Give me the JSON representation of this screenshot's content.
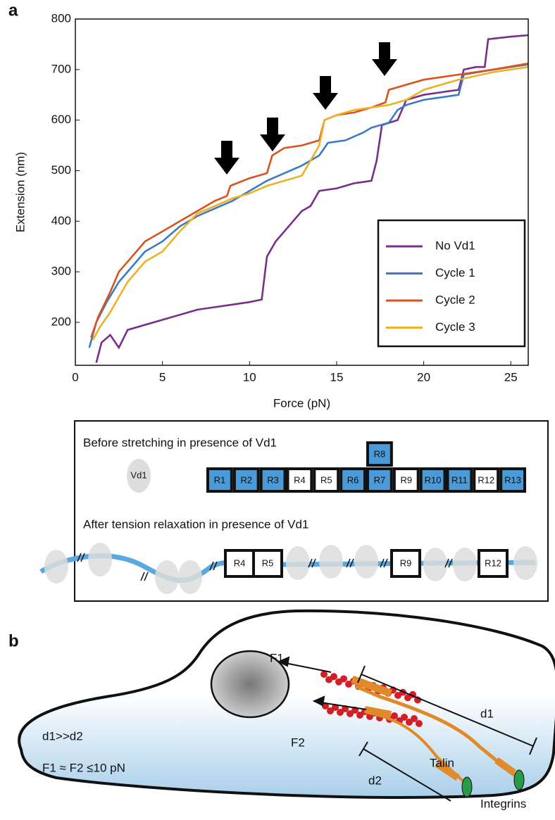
{
  "panel_labels": [
    "a",
    "b"
  ],
  "chart_data": {
    "type": "line",
    "xlabel": "Force (pN)",
    "ylabel": "Extension (nm)",
    "xlim": [
      0,
      26
    ],
    "ylim": [
      115,
      800
    ],
    "xticks": [
      0,
      5,
      10,
      15,
      20,
      25
    ],
    "yticks": [
      200,
      300,
      400,
      500,
      600,
      700,
      800
    ],
    "legend": "lower right",
    "series": [
      {
        "name": "No Vd1",
        "color": "#7b2d8e",
        "x": [
          1.2,
          1.5,
          2,
          2.5,
          3,
          4,
          5,
          6,
          7,
          8,
          9,
          10,
          10.7,
          11,
          11.5,
          12,
          12.5,
          13,
          13.5,
          14,
          15,
          16,
          17,
          17.3,
          17.6,
          18.5,
          19,
          20,
          21,
          22,
          22.3,
          23,
          23.5,
          23.7,
          25,
          26
        ],
        "values": [
          120,
          160,
          175,
          150,
          185,
          195,
          205,
          215,
          225,
          230,
          235,
          240,
          245,
          330,
          360,
          380,
          400,
          420,
          430,
          460,
          465,
          475,
          480,
          520,
          590,
          600,
          640,
          650,
          655,
          660,
          700,
          705,
          705,
          760,
          765,
          768
        ]
      },
      {
        "name": "Cycle 1",
        "color": "#3a7cc4",
        "x": [
          0.8,
          1.2,
          1.8,
          2.5,
          3,
          4,
          5,
          6,
          7,
          8,
          9,
          10,
          11,
          12,
          13,
          14,
          14.5,
          15.5,
          16.5,
          17,
          18,
          18.5,
          19,
          20,
          21,
          22,
          22.3,
          24,
          26
        ],
        "values": [
          150,
          200,
          240,
          280,
          300,
          340,
          360,
          390,
          410,
          425,
          440,
          460,
          480,
          495,
          510,
          530,
          555,
          560,
          575,
          585,
          595,
          620,
          630,
          640,
          645,
          650,
          690,
          700,
          710
        ]
      },
      {
        "name": "Cycle 2",
        "color": "#d9531e",
        "x": [
          0.9,
          1.3,
          2,
          2.5,
          3,
          4,
          5,
          6,
          7,
          8,
          8.7,
          8.9,
          10,
          11,
          11.3,
          12,
          13,
          14,
          14.3,
          15,
          16,
          17,
          17.8,
          18,
          19,
          20,
          22,
          24,
          26
        ],
        "values": [
          170,
          210,
          260,
          300,
          320,
          360,
          380,
          400,
          420,
          440,
          450,
          470,
          485,
          495,
          530,
          545,
          550,
          560,
          600,
          610,
          615,
          625,
          635,
          660,
          670,
          680,
          690,
          700,
          712
        ]
      },
      {
        "name": "Cycle 3",
        "color": "#ecb127",
        "x": [
          1,
          1.4,
          2,
          2.5,
          3,
          4,
          5,
          6,
          7,
          8,
          9,
          10,
          11,
          12,
          13,
          13.5,
          14,
          14.3,
          15,
          16,
          17,
          18,
          19,
          20,
          21,
          22,
          24,
          26
        ],
        "values": [
          165,
          190,
          220,
          250,
          280,
          320,
          340,
          380,
          415,
          430,
          445,
          455,
          470,
          480,
          490,
          520,
          550,
          600,
          610,
          620,
          625,
          630,
          640,
          660,
          670,
          680,
          695,
          705
        ]
      }
    ]
  },
  "diagram_a": {
    "before_label": "Before stretching in presence of Vd1",
    "vd1_label": "Vd1",
    "domains": [
      "R1",
      "R2",
      "R3",
      "R4",
      "R5",
      "R6",
      "R7",
      "R8",
      "R9",
      "R10",
      "R11",
      "R12",
      "R13"
    ],
    "after_label": "After tension relaxation in presence of Vd1",
    "remaining_domains": [
      "R4",
      "R5",
      "R9",
      "R12"
    ]
  },
  "diagram_b": {
    "f1": "F1",
    "f2": "F2",
    "d1": "d1",
    "d2": "d2",
    "relation": "d1>>d2",
    "force": "F1 ≈ F2 ≤10 pN",
    "talin": "Talin",
    "integrins": "Integrins"
  }
}
